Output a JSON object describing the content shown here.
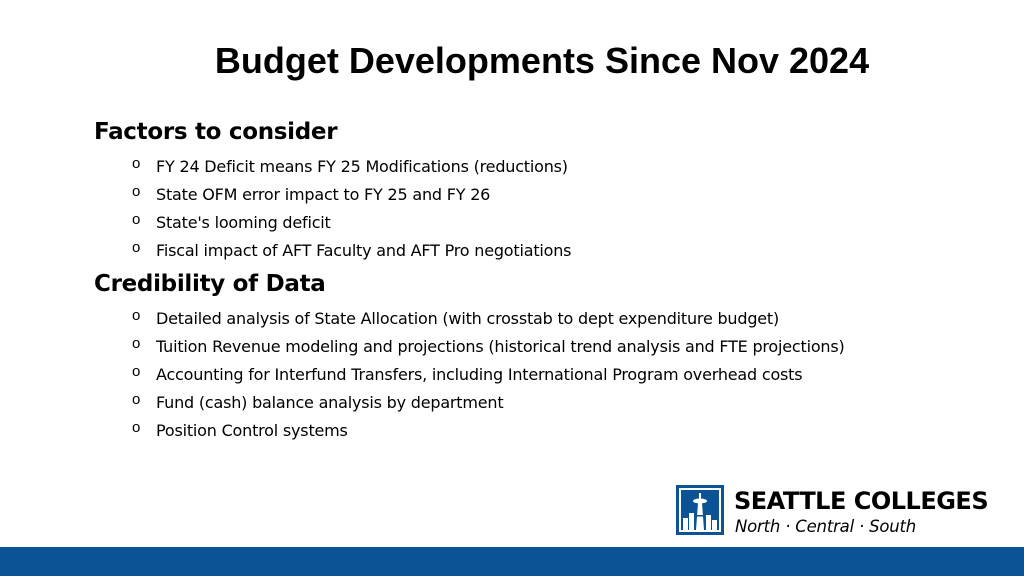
{
  "slide": {
    "title": "Budget Developments Since Nov 2024",
    "sections": [
      {
        "heading": "Factors to consider",
        "bullets": [
          "FY 24 Deficit means FY 25 Modifications (reductions)",
          "State OFM error impact to FY 25 and FY 26",
          "State's looming deficit",
          "Fiscal impact of AFT Faculty and AFT Pro negotiations"
        ]
      },
      {
        "heading": "Credibility of Data",
        "bullets": [
          "Detailed analysis of State Allocation (with crosstab to dept expenditure budget)",
          "Tuition Revenue modeling and projections (historical trend analysis and FTE projections)",
          "Accounting for Interfund Transfers, including International Program overhead costs",
          "Fund (cash) balance analysis by department",
          "Position Control systems"
        ]
      }
    ],
    "bullet_marker": "o"
  },
  "logo": {
    "name": "SEATTLE COLLEGES",
    "campuses": "North · Central · South",
    "icon": "space-needle-skyline-icon"
  },
  "colors": {
    "brand_blue": "#0b5394",
    "text": "#000000"
  }
}
